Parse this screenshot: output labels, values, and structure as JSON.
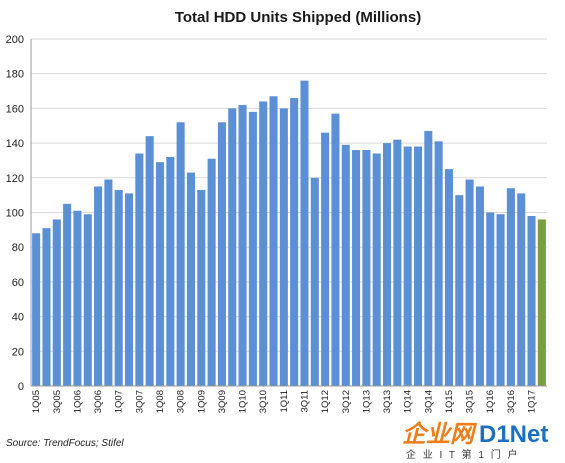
{
  "chart_data": {
    "type": "bar",
    "title": "Total HDD Units Shipped (Millions)",
    "xlabel": "",
    "ylabel": "",
    "ylim": [
      0,
      200
    ],
    "yticks": [
      0,
      20,
      40,
      60,
      80,
      100,
      120,
      140,
      160,
      180,
      200
    ],
    "grid": true,
    "categories": [
      "1Q05",
      "2Q05",
      "3Q05",
      "4Q05",
      "1Q06",
      "2Q06",
      "3Q06",
      "4Q06",
      "1Q07",
      "2Q07",
      "3Q07",
      "4Q07",
      "1Q08",
      "2Q08",
      "3Q08",
      "4Q08",
      "1Q09",
      "2Q09",
      "3Q09",
      "4Q09",
      "1Q10",
      "2Q10",
      "3Q10",
      "4Q10",
      "1Q11",
      "2Q11",
      "3Q11",
      "4Q11",
      "1Q12",
      "2Q12",
      "3Q12",
      "4Q12",
      "1Q13",
      "2Q13",
      "3Q13",
      "4Q13",
      "1Q14",
      "2Q14",
      "3Q14",
      "4Q14",
      "1Q15",
      "2Q15",
      "3Q15",
      "4Q15",
      "1Q16",
      "2Q16",
      "3Q16",
      "4Q16",
      "1Q17",
      "2Q17"
    ],
    "tick_labels": [
      "1Q05",
      "3Q05",
      "1Q06",
      "3Q06",
      "1Q07",
      "3Q07",
      "1Q08",
      "3Q08",
      "1Q09",
      "3Q09",
      "1Q10",
      "3Q10",
      "1Q11",
      "3Q11",
      "1Q12",
      "3Q12",
      "1Q13",
      "3Q13",
      "1Q14",
      "3Q14",
      "1Q15",
      "3Q15",
      "1Q16",
      "3Q16",
      "1Q17"
    ],
    "values": [
      88,
      91,
      96,
      105,
      101,
      99,
      115,
      119,
      113,
      111,
      134,
      144,
      129,
      132,
      152,
      123,
      113,
      131,
      152,
      160,
      162,
      158,
      164,
      167,
      160,
      166,
      176,
      120,
      146,
      157,
      139,
      136,
      136,
      134,
      140,
      142,
      138,
      138,
      147,
      141,
      125,
      110,
      119,
      115,
      100,
      99,
      114,
      111,
      98,
      96
    ],
    "bar_colors": {
      "default": "#5b8fd6",
      "highlight": "#79a03c"
    },
    "highlight_index": 49
  },
  "footer": {
    "source": "Source: TrendFocus; Stifel"
  },
  "watermark": {
    "brand_a": "企业网",
    "brand_b": "D1Net",
    "tagline": "企 业 I T 第 1 门 户"
  }
}
